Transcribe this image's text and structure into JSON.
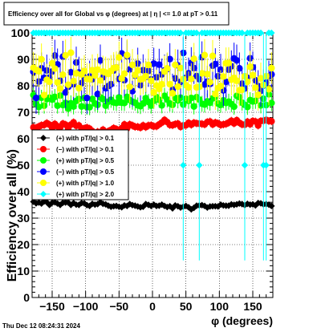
{
  "title": "Efficiency over all for Global vs φ (degrees) at | η | <= 1.0 at pT > 0.11",
  "footer_timestamp": "Thu Dec 12 08:24:31 2024",
  "colors": {
    "black": "#000000",
    "red": "#ff0000",
    "green": "#00ff00",
    "blue": "#0000ff",
    "yellow": "#ffff00",
    "cyan": "#00ffff"
  },
  "chart_data": {
    "type": "scatter",
    "title": "Efficiency over all for Global vs φ (degrees) at | η | <= 1.0 at pT > 0.11",
    "xlabel": "φ (degrees)",
    "ylabel": "Efficiency over all (%)",
    "xlim": [
      -180,
      180
    ],
    "ylim": [
      0,
      100
    ],
    "x_ticks": [
      -150,
      -100,
      -50,
      0,
      50,
      100,
      150
    ],
    "x_tick_labels": [
      "−150",
      "−100",
      "−50",
      "0",
      "50",
      "100",
      "150"
    ],
    "y_ticks": [
      0,
      10,
      20,
      30,
      40,
      50,
      60,
      70,
      80,
      90,
      100
    ],
    "y_tick_labels": [
      "0",
      "10",
      "20",
      "30",
      "40",
      "50",
      "60",
      "70",
      "80",
      "90",
      "100"
    ],
    "grid": true,
    "legend_position": "lower-left",
    "n_points": 90,
    "x_start": -178,
    "x_step": 4,
    "series": [
      {
        "name": "(+) with pT/|q| > 0.1",
        "color": "#000000",
        "marker": "diamond",
        "y": [
          36.2,
          35.6,
          35.9,
          35.5,
          36.3,
          36.0,
          35.0,
          35.8,
          36.0,
          35.5,
          35.0,
          35.8,
          35.9,
          35.9,
          35.0,
          35.7,
          35.1,
          35.0,
          35.7,
          35.6,
          34.9,
          34.6,
          35.4,
          35.1,
          35.3,
          36.0,
          35.4,
          35.2,
          34.7,
          34.3,
          34.5,
          34.6,
          34.3,
          34.1,
          34.8,
          34.6,
          35.3,
          34.9,
          34.7,
          34.4,
          34.1,
          34.3,
          35.3,
          35.0,
          34.6,
          35.1,
          34.6,
          34.7,
          35.1,
          34.6,
          34.2,
          34.5,
          33.7,
          34.8,
          34.5,
          34.0,
          34.3,
          34.6,
          34.1,
          33.3,
          33.9,
          34.7,
          34.8,
          34.9,
          34.6,
          34.0,
          34.4,
          34.5,
          34.5,
          34.4,
          35.1,
          34.8,
          34.7,
          34.7,
          35.2,
          35.0,
          35.2,
          35.5,
          35.3,
          34.9,
          35.4,
          35.1,
          35.2,
          34.8,
          35.7,
          35.6,
          35.2,
          35.3,
          35.1,
          34.6
        ]
      },
      {
        "name": "(−) with pT/|q| > 0.1",
        "color": "#ff0000",
        "marker": "circle",
        "y": [
          64.3,
          64.1,
          64.6,
          65.1,
          65.2,
          65.9,
          65.3,
          64.1,
          65.6,
          64.7,
          64.3,
          65.7,
          65.3,
          63.8,
          65.3,
          66.2,
          64.9,
          65.0,
          63.9,
          63.9,
          64.2,
          63.8,
          62.9,
          61.2,
          62.6,
          62.0,
          63.4,
          62.2,
          62.8,
          63.3,
          64.0,
          63.6,
          62.5,
          64.0,
          65.4,
          63.9,
          65.4,
          65.0,
          64.5,
          64.5,
          64.2,
          65.0,
          64.4,
          65.0,
          65.1,
          64.7,
          64.7,
          65.4,
          66.1,
          67.1,
          66.3,
          65.2,
          65.1,
          65.5,
          65.7,
          64.5,
          65.0,
          65.1,
          66.0,
          65.3,
          66.0,
          65.8,
          65.7,
          65.6,
          65.4,
          66.3,
          66.5,
          65.4,
          66.1,
          65.8,
          65.2,
          65.4,
          65.6,
          66.1,
          66.8,
          65.8,
          67.0,
          66.0,
          65.4,
          65.3,
          66.4,
          65.5,
          66.7,
          66.5,
          65.0,
          66.7,
          66.8,
          67.1,
          66.7,
          66.6
        ]
      },
      {
        "name": "(+) with pT/|q| > 0.5",
        "color": "#00ff00",
        "marker": "circle",
        "y": [
          76.5,
          73.1,
          72.0,
          75.5,
          72.5,
          75.0,
          75.5,
          74.8,
          75.8,
          72.5,
          76.3,
          72.7,
          73.5,
          71.4,
          73.4,
          72.2,
          74.3,
          75.0,
          72.2,
          75.4,
          72.0,
          71.9,
          75.0,
          73.3,
          72.8,
          75.6,
          75.0,
          72.5,
          74.0,
          74.7,
          73.7,
          73.5,
          75.6,
          73.6,
          73.5,
          75.8,
          74.6,
          74.0,
          73.6,
          72.6,
          72.3,
          73.3,
          75.3,
          73.9,
          72.5,
          74.3,
          75.7,
          74.7,
          72.6,
          76.2,
          74.8,
          73.3,
          72.8,
          75.4,
          74.5,
          75.5,
          72.9,
          75.1,
          74.3,
          75.4,
          72.2,
          75.7,
          74.8,
          73.2,
          72.9,
          74.1,
          73.6,
          75.2,
          75.8,
          73.3,
          72.8,
          74.5,
          73.5,
          74.0,
          73.1,
          72.1,
          76.2,
          75.7,
          73.6,
          72.8,
          72.0,
          74.6,
          74.1,
          74.3,
          76.4,
          72.6,
          75.1,
          72.7,
          76.8,
          73.5
        ]
      },
      {
        "name": "(−) with pT/|q| > 0.5",
        "color": "#0000ff",
        "marker": "circle",
        "y": [
          85.3,
          75.4,
          81.6,
          86.6,
          83.0,
          85.8,
          83.1,
          85.4,
          91.4,
          88.1,
          81.9,
          91.0,
          77.5,
          79.6,
          85.1,
          80.6,
          88.8,
          85.0,
          81.0,
          83.1,
          75.4,
          83.5,
          82.5,
          84.3,
          76.9,
          89.6,
          83.2,
          79.1,
          79.9,
          80.6,
          85.8,
          86.9,
          82.6,
          92.2,
          82.1,
          91.2,
          86.2,
          78.0,
          83.8,
          88.4,
          80.2,
          85.9,
          83.4,
          85.6,
          82.4,
          88.4,
          83.2,
          88.0,
          84.3,
          85.8,
          86.3,
          90.1,
          78.6,
          82.8,
          87.7,
          81.5,
          92.4,
          83.0,
          84.7,
          88.6,
          86.7,
          83.7,
          82.5,
          90.8,
          80.5,
          81.6,
          80.7,
          87.6,
          88.2,
          83.6,
          86.1,
          78.3,
          81.5,
          86.1,
          87.4,
          90.3,
          89.6,
          86.6,
          80.8,
          79.0,
          83.0,
          90.4,
          87.0,
          82.1,
          79.9,
          78.1,
          80.1,
          81.2,
          83.5,
          84.3
        ]
      },
      {
        "name": "(+) with pT/|q| > 1.0",
        "color": "#ffff00",
        "marker": "circle",
        "y": [
          86.8,
          86.0,
          85.5,
          90.0,
          76.5,
          82.3,
          81.5,
          88.5,
          86.5,
          81.3,
          78.9,
          84.2,
          91.5,
          80.4,
          92.5,
          81.8,
          84.7,
          79.1,
          84.3,
          85.6,
          82.6,
          82.5,
          85.9,
          83.9,
          86.1,
          82.0,
          85.4,
          85.0,
          84.5,
          85.6,
          86.7,
          86.9,
          90.7,
          82.8,
          84.6,
          91.6,
          79.6,
          87.9,
          84.1,
          85.8,
          82.4,
          82.7,
          83.6,
          87.9,
          81.9,
          77.5,
          80.1,
          78.8,
          80.6,
          85.4,
          86.6,
          80.6,
          77.2,
          87.9,
          79.7,
          86.7,
          82.5,
          80.2,
          79.4,
          82.6,
          90.2,
          79.4,
          79.6,
          84.7,
          91.6,
          84.4,
          81.4,
          91.3,
          76.9,
          79.1,
          79.9,
          83.5,
          88.5,
          88.6,
          82.3,
          83.0,
          81.9,
          78.3,
          78.5,
          83.6,
          81.5,
          87.2,
          84.0,
          79.3,
          76.6,
          82.8,
          80.3,
          83.6,
          78.7,
          86.7
        ]
      },
      {
        "name": "(+) with pT/|q| > 2.0",
        "color": "#00ffff",
        "marker": "diamond",
        "y": [
          100,
          100,
          100,
          100,
          100,
          100,
          100,
          100,
          100,
          100,
          100,
          100,
          100,
          100,
          100,
          100,
          100,
          100,
          100,
          100,
          100,
          100,
          100,
          100,
          100,
          100,
          100,
          100,
          100,
          100,
          100,
          100,
          100,
          100,
          100,
          100,
          100,
          100,
          100,
          100,
          100,
          100,
          100,
          100,
          100,
          100,
          100,
          100,
          100,
          100,
          100,
          100,
          100,
          100,
          100,
          100,
          50,
          100,
          100,
          100,
          100,
          100,
          50,
          100,
          100,
          100,
          100,
          100,
          100,
          100,
          100,
          100,
          100,
          100,
          100,
          100,
          100,
          100,
          100,
          50,
          100,
          100,
          100,
          100,
          100,
          100,
          50,
          50,
          100,
          100
        ]
      }
    ]
  }
}
